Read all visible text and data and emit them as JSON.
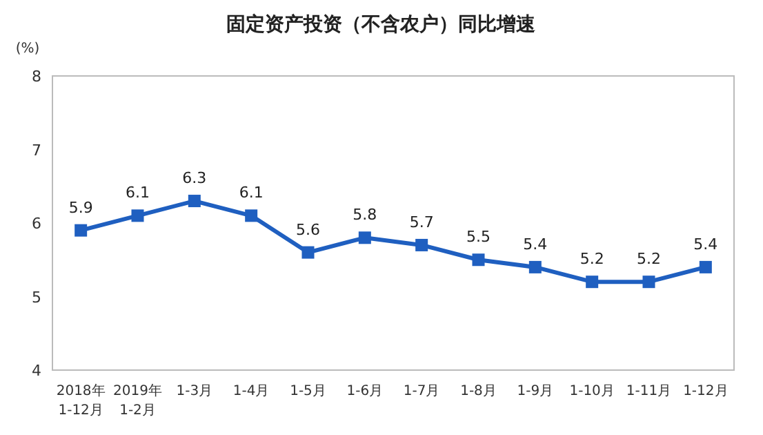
{
  "chart_data": {
    "type": "line",
    "title": "固定资产投资（不含农户）同比增速",
    "ylabel": "(%)",
    "categories": [
      "2018年\n1-12月",
      "2019年\n1-2月",
      "1-3月",
      "1-4月",
      "1-5月",
      "1-6月",
      "1-7月",
      "1-8月",
      "1-9月",
      "1-10月",
      "1-11月",
      "1-12月"
    ],
    "series": [
      {
        "color": "#1f5fc0",
        "values": [
          5.9,
          6.1,
          6.3,
          6.1,
          5.6,
          5.8,
          5.7,
          5.5,
          5.4,
          5.2,
          5.2,
          5.4
        ]
      }
    ],
    "ylim": [
      4,
      8
    ],
    "yticks": [
      4,
      5,
      6,
      7,
      8
    ],
    "data_labels": true,
    "marker": "square",
    "line_style": "solid",
    "grid": false
  }
}
